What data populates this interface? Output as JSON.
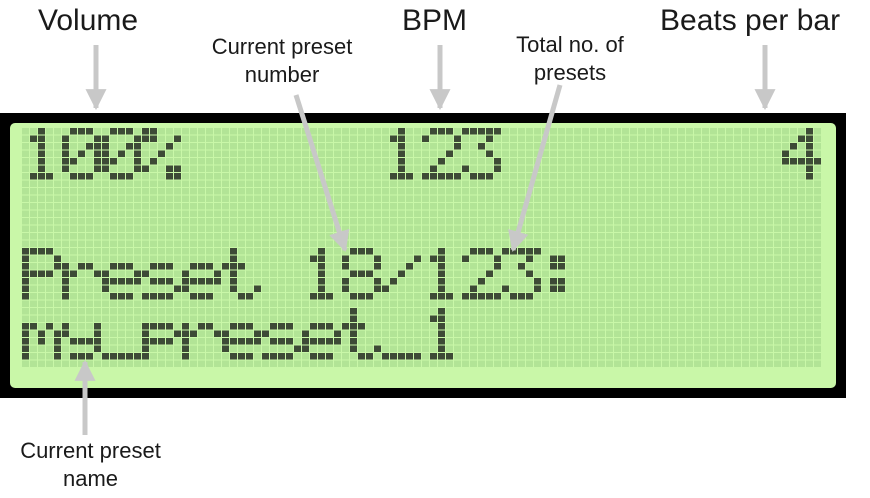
{
  "labels": {
    "volume": "Volume",
    "bpm": "BPM",
    "beats_per_bar": "Beats per bar",
    "current_preset_number": [
      "Current preset",
      "number"
    ],
    "total_presets": [
      "Total no. of",
      "presets"
    ],
    "current_preset_name": [
      "Current preset",
      "name"
    ]
  },
  "lcd": {
    "columns": 20,
    "rows": 4,
    "lines": [
      "100%     123       4",
      "",
      "Preset 18/123:",
      "my_preset_1"
    ],
    "colors": {
      "bezel": "#000000",
      "background": "#c9f7a8",
      "pixel_off": "#b2e496",
      "pixel_on": "#3d4a36"
    }
  },
  "arrow_color": "#c8c8c8"
}
